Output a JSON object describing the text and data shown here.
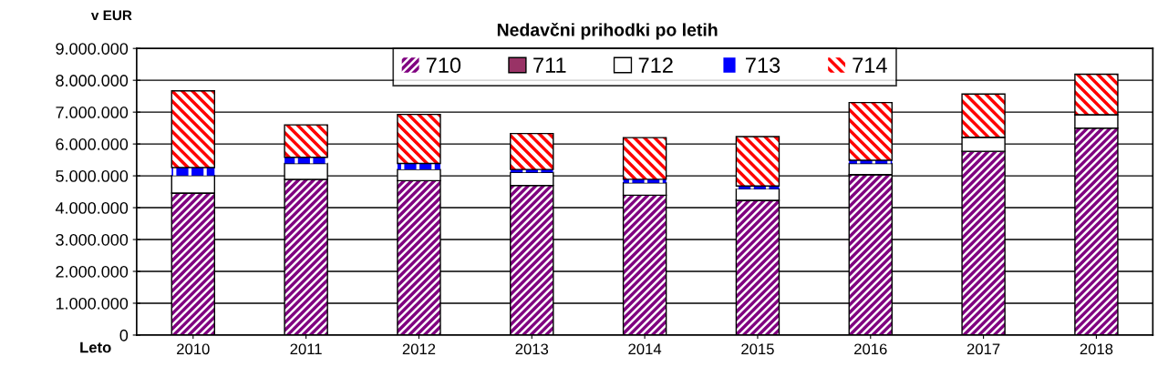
{
  "chart_data": {
    "type": "bar",
    "stacked": true,
    "title": "Nedavčni prihodki po letih",
    "ylabel": "v EUR",
    "xlabel": "Leto",
    "categories": [
      "2010",
      "2011",
      "2012",
      "2013",
      "2014",
      "2015",
      "2016",
      "2017",
      "2018"
    ],
    "series": [
      {
        "name": "710",
        "color": "#800080",
        "values": [
          4460000,
          4890000,
          4850000,
          4700000,
          4390000,
          4230000,
          5040000,
          5770000,
          6500000
        ]
      },
      {
        "name": "711",
        "color": "#993366",
        "values": [
          0,
          0,
          0,
          0,
          0,
          0,
          0,
          0,
          0
        ]
      },
      {
        "name": "712",
        "color": "#ffffff",
        "values": [
          550000,
          500000,
          350000,
          410000,
          390000,
          360000,
          350000,
          440000,
          420000
        ]
      },
      {
        "name": "713",
        "color": "#0000ff",
        "values": [
          250000,
          190000,
          190000,
          90000,
          110000,
          90000,
          100000,
          0,
          0
        ]
      },
      {
        "name": "714",
        "color": "#ff0000",
        "values": [
          2410000,
          1020000,
          1540000,
          1130000,
          1310000,
          1550000,
          1810000,
          1360000,
          1270000
        ]
      }
    ],
    "ylim": [
      0,
      9000000
    ],
    "yticks": [
      0,
      {
        "value": 1000000,
        "label": "1.000.000"
      },
      {
        "value": 2000000,
        "label": "2.000.000"
      },
      {
        "value": 3000000,
        "label": "3.000.000"
      },
      {
        "value": 4000000,
        "label": "4.000.000"
      },
      {
        "value": 5000000,
        "label": "5.000.000"
      },
      {
        "value": 6000000,
        "label": "6.000.000"
      },
      {
        "value": 7000000,
        "label": "7.000.000"
      },
      {
        "value": 8000000,
        "label": "8.000.000"
      },
      {
        "value": 9000000,
        "label": "9.000.000"
      }
    ],
    "grid": "y",
    "legend": "top"
  }
}
